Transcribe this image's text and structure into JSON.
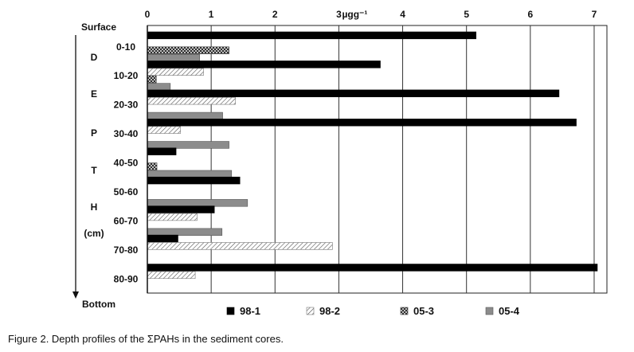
{
  "chart_data": {
    "type": "bar",
    "orientation": "horizontal",
    "unit_label": "µgg⁻¹",
    "categories": [
      "0-10",
      "10-20",
      "20-30",
      "30-40",
      "40-50",
      "50-60",
      "60-70",
      "70-80",
      "80-90"
    ],
    "series": [
      {
        "name": "98-1",
        "values": [
          5.15,
          3.65,
          6.45,
          6.72,
          0.45,
          1.45,
          1.05,
          0.48,
          7.05
        ]
      },
      {
        "name": "98-2",
        "values": [
          null,
          0.88,
          1.38,
          0.52,
          null,
          null,
          0.78,
          2.9,
          0.75
        ]
      },
      {
        "name": "05-3",
        "values": [
          1.28,
          0.14,
          null,
          null,
          0.15,
          null,
          null,
          null,
          null
        ]
      },
      {
        "name": "05-4",
        "values": [
          0.82,
          0.36,
          1.18,
          1.28,
          1.32,
          1.57,
          1.17,
          null,
          null
        ]
      }
    ],
    "xlim": [
      0,
      7.2
    ],
    "xticks": [
      0,
      1,
      2,
      3,
      4,
      5,
      6,
      7
    ],
    "grid": "vertical",
    "legend": "bottom",
    "top_label": "Surface",
    "bottom_label": "Bottom",
    "side_letters": [
      "D",
      "E",
      "P",
      "T",
      "H",
      "(cm)"
    ]
  },
  "colors": {
    "98-1": "#000000",
    "98-2": "hatch-light-diagonal",
    "05-3": "crosshatch-dark",
    "05-4": "#8c8c8c"
  },
  "caption": "Figure 2. Depth profiles of the ΣPAHs in the sediment cores."
}
